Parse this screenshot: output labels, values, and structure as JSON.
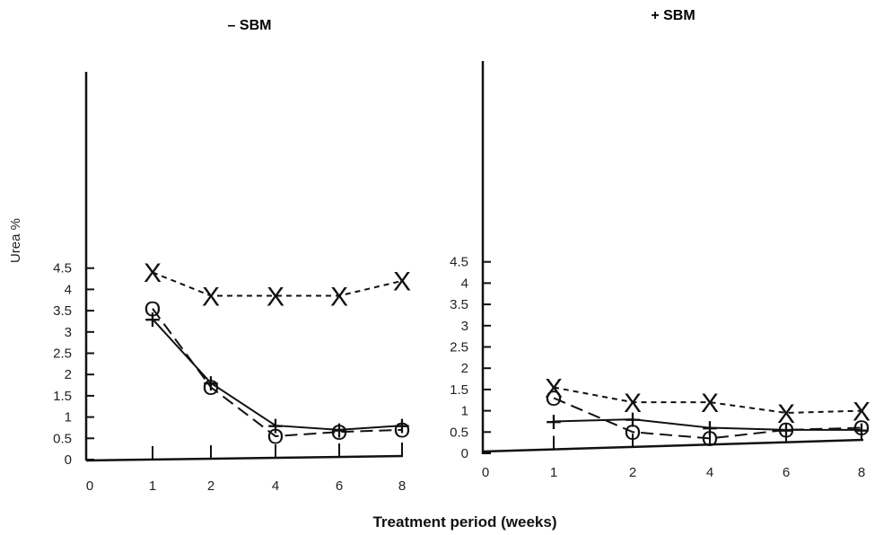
{
  "figure": {
    "xlabel": "Treatment period (weeks)"
  },
  "chart_data": [
    {
      "type": "line",
      "title": "– SBM",
      "xlabel": "Treatment period (weeks)",
      "ylabel": "Urea %",
      "ylim": [
        0,
        4.5
      ],
      "categories": [
        "0",
        "1",
        "2",
        "4",
        "6",
        "8"
      ],
      "yticks": [
        "0",
        "0.5",
        "1",
        "1.5",
        "2",
        "2.5",
        "3",
        "3.5",
        "4",
        "4.5"
      ],
      "grid": false,
      "series": [
        {
          "marker": "X",
          "line": "short-dash",
          "x": [
            "1",
            "2",
            "4",
            "6",
            "8"
          ],
          "values": [
            4.4,
            3.85,
            3.85,
            3.85,
            4.2
          ]
        },
        {
          "marker": "O",
          "line": "long-dash",
          "x": [
            "1",
            "2",
            "4",
            "6",
            "8"
          ],
          "values": [
            3.55,
            1.7,
            0.55,
            0.65,
            0.7
          ]
        },
        {
          "marker": "+",
          "line": "solid",
          "x": [
            "1",
            "2",
            "4",
            "6",
            "8"
          ],
          "values": [
            3.3,
            1.8,
            0.8,
            0.7,
            0.8
          ]
        }
      ]
    },
    {
      "type": "line",
      "title": "+ SBM",
      "xlabel": "Treatment period (weeks)",
      "ylabel": "",
      "ylim": [
        0,
        4.5
      ],
      "categories": [
        "0",
        "1",
        "2",
        "4",
        "6",
        "8"
      ],
      "yticks": [
        "0",
        "0.5",
        "1",
        "1.5",
        "2",
        "2.5",
        "3",
        "3.5",
        "4",
        "4.5"
      ],
      "grid": false,
      "series": [
        {
          "marker": "X",
          "line": "short-dash",
          "x": [
            "1",
            "2",
            "4",
            "6",
            "8"
          ],
          "values": [
            1.55,
            1.2,
            1.2,
            0.95,
            1.0
          ]
        },
        {
          "marker": "O",
          "line": "long-dash",
          "x": [
            "1",
            "2",
            "4",
            "6",
            "8"
          ],
          "values": [
            1.3,
            0.5,
            0.35,
            0.55,
            0.6
          ]
        },
        {
          "marker": "+",
          "line": "solid",
          "x": [
            "1",
            "2",
            "4",
            "6",
            "8"
          ],
          "values": [
            0.75,
            0.8,
            0.6,
            0.55,
            0.55
          ]
        }
      ]
    }
  ]
}
